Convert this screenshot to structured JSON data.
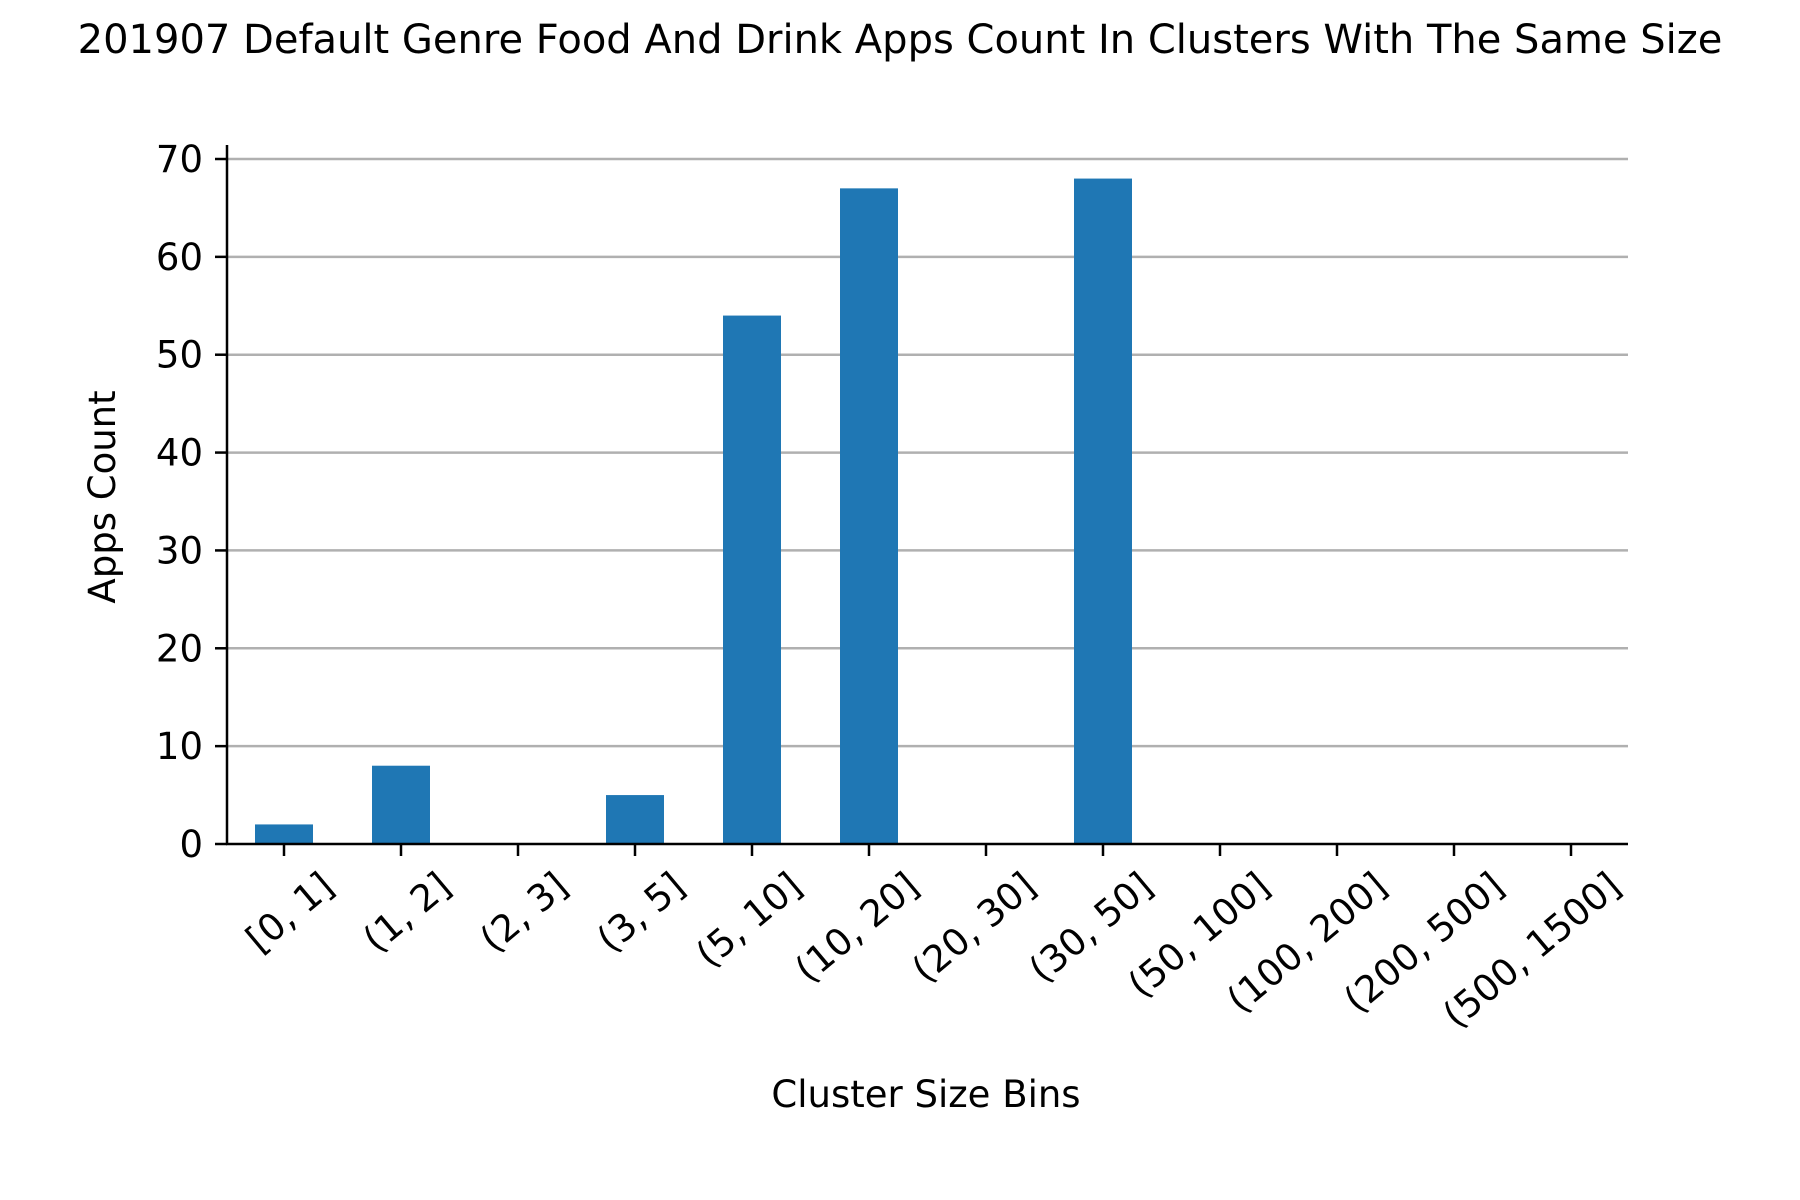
{
  "chart_data": {
    "type": "bar",
    "title": "201907 Default Genre Food And Drink Apps Count In Clusters With The Same Size",
    "xlabel": "Cluster Size Bins",
    "ylabel": "Apps Count",
    "categories": [
      "[0, 1]",
      "(1, 2]",
      "(2, 3]",
      "(3, 5]",
      "(5, 10]",
      "(10, 20]",
      "(20, 30]",
      "(30, 50]",
      "(50, 100]",
      "(100, 200]",
      "(200, 500]",
      "(500, 1500]"
    ],
    "values": [
      2,
      8,
      0,
      5,
      54,
      67,
      0,
      68,
      0,
      0,
      0,
      0
    ],
    "ylim": [
      0,
      70
    ],
    "yticks": [
      0,
      10,
      20,
      30,
      40,
      50,
      60,
      70
    ],
    "grid": "horizontal",
    "bar_color": "#1f77b4",
    "grid_color": "#b0b0b0"
  }
}
